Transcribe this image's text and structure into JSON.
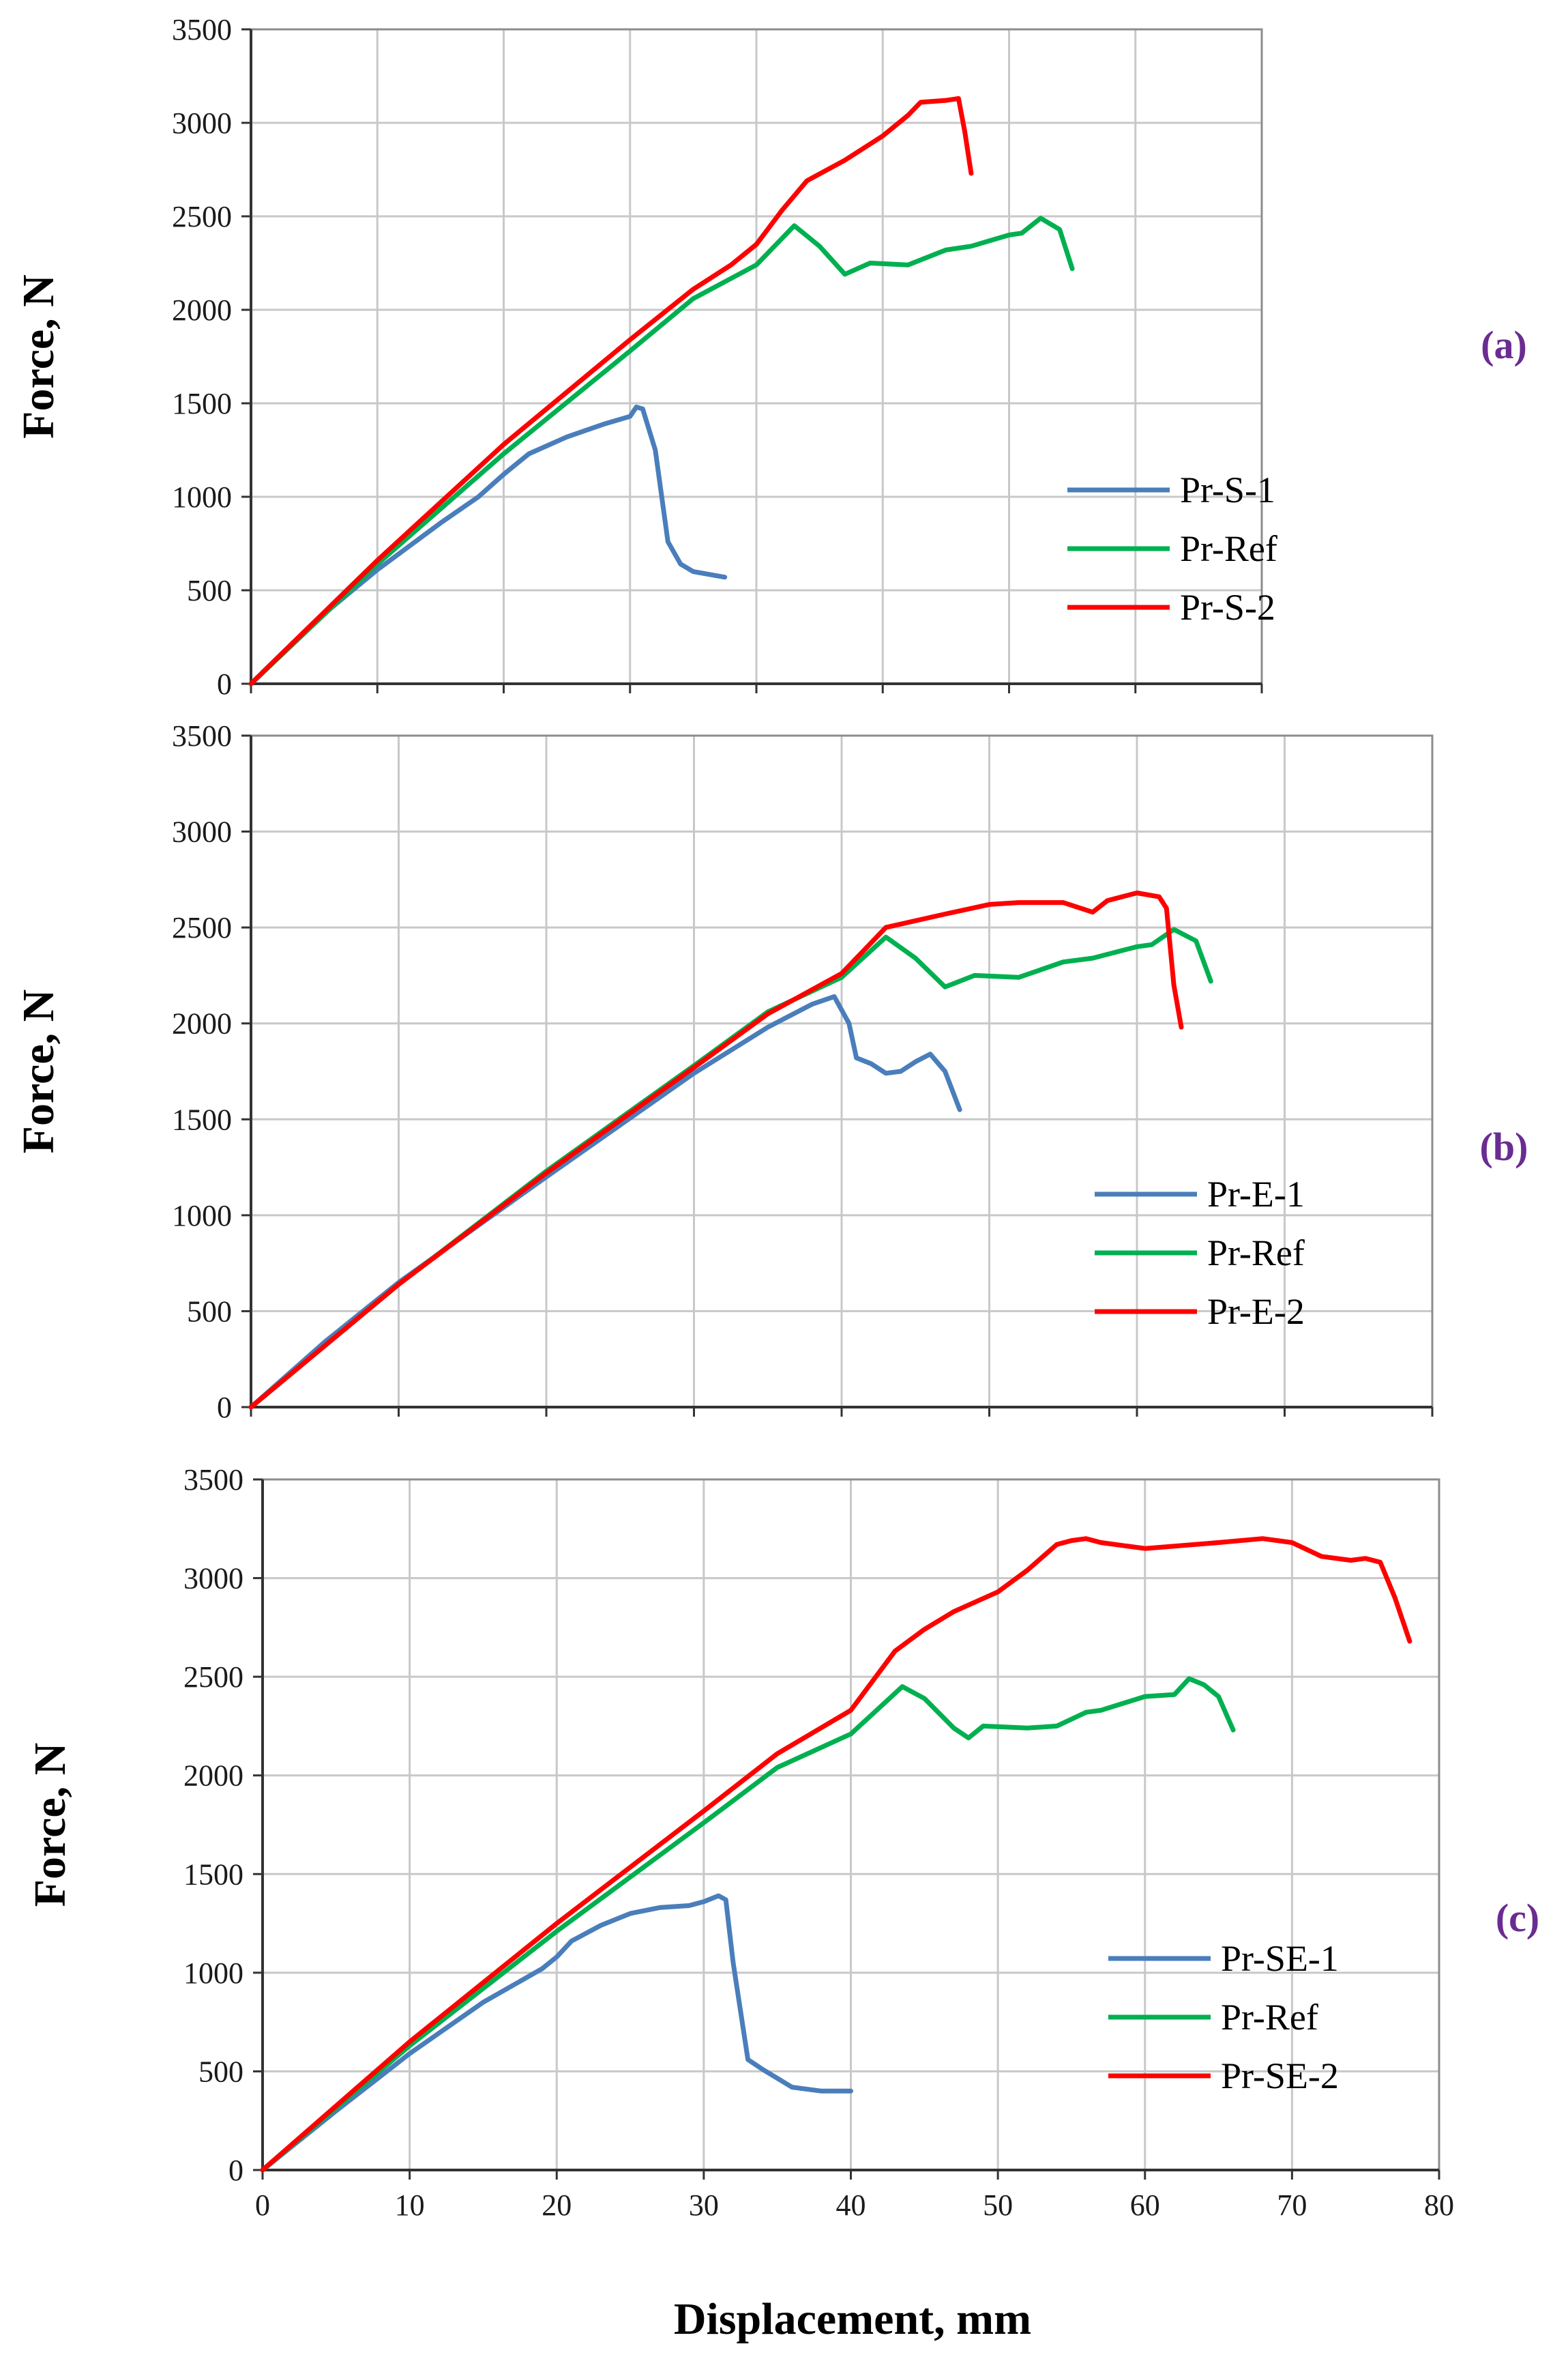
{
  "figure": {
    "xlabel": "Displacement, mm",
    "x_ticks": [
      "0",
      "10",
      "20",
      "30",
      "40",
      "50",
      "60",
      "70",
      "80"
    ],
    "y_ticks": [
      "0",
      "500",
      "1000",
      "1500",
      "2000",
      "2500",
      "3000",
      "3500"
    ]
  },
  "colors": {
    "blue": "#4a7ebb",
    "green": "#00b050",
    "red": "#ff0000"
  },
  "chart_data": [
    {
      "type": "line",
      "panel": "(a)",
      "ylabel": "Force, N",
      "xlim": [
        0,
        80
      ],
      "ylim": [
        0,
        3500
      ],
      "grid": true,
      "legend_position": "lower-right",
      "series": [
        {
          "name": "Pr-S-1",
          "color": "blue",
          "x": [
            0,
            5,
            10,
            15,
            18,
            20,
            22,
            25,
            28,
            30,
            30.5,
            31,
            32,
            33,
            34,
            35,
            37.5
          ],
          "y": [
            0,
            330,
            610,
            860,
            1000,
            1120,
            1230,
            1320,
            1390,
            1430,
            1480,
            1470,
            1250,
            760,
            640,
            600,
            570
          ]
        },
        {
          "name": "Pr-Ref",
          "color": "green",
          "x": [
            0,
            10,
            20,
            30,
            35,
            40,
            43,
            45,
            47,
            49,
            52,
            55,
            57,
            60,
            61,
            62.5,
            64,
            65
          ],
          "y": [
            0,
            640,
            1230,
            1780,
            2060,
            2240,
            2450,
            2340,
            2190,
            2250,
            2240,
            2320,
            2340,
            2400,
            2410,
            2490,
            2430,
            2220
          ]
        },
        {
          "name": "Pr-S-2",
          "color": "red",
          "x": [
            0,
            10,
            20,
            30,
            35,
            38,
            40,
            42,
            44,
            47,
            50,
            52,
            53,
            55,
            56,
            56.5,
            57
          ],
          "y": [
            0,
            660,
            1280,
            1840,
            2110,
            2240,
            2350,
            2530,
            2690,
            2800,
            2930,
            3040,
            3110,
            3120,
            3130,
            2950,
            2730
          ]
        }
      ]
    },
    {
      "type": "line",
      "panel": "(b)",
      "ylabel": "Force, N",
      "xlim": [
        0,
        80
      ],
      "ylim": [
        0,
        3500
      ],
      "grid": true,
      "legend_position": "lower-right",
      "series": [
        {
          "name": "Pr-E-1",
          "color": "blue",
          "x": [
            0,
            5,
            10,
            20,
            30,
            35,
            38,
            39.5,
            40.5,
            41,
            42,
            43,
            44,
            45,
            46,
            47,
            48
          ],
          "y": [
            0,
            340,
            650,
            1200,
            1740,
            1980,
            2100,
            2140,
            2000,
            1820,
            1790,
            1740,
            1750,
            1800,
            1840,
            1750,
            1550
          ]
        },
        {
          "name": "Pr-Ref",
          "color": "green",
          "x": [
            0,
            10,
            20,
            30,
            35,
            40,
            43,
            45,
            47,
            49,
            52,
            55,
            57,
            60,
            61,
            62.5,
            64,
            65
          ],
          "y": [
            0,
            640,
            1230,
            1780,
            2060,
            2240,
            2450,
            2340,
            2190,
            2250,
            2240,
            2320,
            2340,
            2400,
            2410,
            2490,
            2430,
            2220
          ]
        },
        {
          "name": "Pr-E-2",
          "color": "red",
          "x": [
            0,
            10,
            20,
            30,
            35,
            40,
            42,
            43,
            47,
            50,
            52,
            55,
            57,
            58,
            60,
            61.5,
            62,
            62.5,
            63
          ],
          "y": [
            0,
            640,
            1220,
            1770,
            2050,
            2260,
            2420,
            2500,
            2570,
            2620,
            2630,
            2630,
            2580,
            2640,
            2680,
            2660,
            2600,
            2200,
            1980
          ]
        }
      ]
    },
    {
      "type": "line",
      "panel": "(c)",
      "ylabel": "Force, N",
      "xlabel": "Displacement, mm",
      "xlim": [
        0,
        80
      ],
      "ylim": [
        0,
        3500
      ],
      "grid": true,
      "legend_position": "lower-right",
      "series": [
        {
          "name": "Pr-SE-1",
          "color": "blue",
          "x": [
            0,
            5,
            10,
            15,
            19,
            20,
            21,
            23,
            25,
            27,
            29,
            30,
            31,
            31.5,
            32,
            33,
            34,
            36,
            38,
            40
          ],
          "y": [
            0,
            300,
            590,
            850,
            1020,
            1080,
            1160,
            1240,
            1300,
            1330,
            1340,
            1360,
            1390,
            1370,
            1050,
            560,
            510,
            420,
            400,
            400
          ]
        },
        {
          "name": "Pr-Ref",
          "color": "green",
          "x": [
            0,
            10,
            20,
            30,
            35,
            40,
            43.5,
            45,
            47,
            48,
            49,
            52,
            54,
            56,
            57,
            60,
            62,
            63,
            64,
            65,
            66
          ],
          "y": [
            0,
            630,
            1210,
            1760,
            2040,
            2210,
            2450,
            2390,
            2240,
            2190,
            2250,
            2240,
            2250,
            2320,
            2330,
            2400,
            2410,
            2490,
            2460,
            2400,
            2230
          ]
        },
        {
          "name": "Pr-SE-2",
          "color": "red",
          "x": [
            0,
            10,
            20,
            30,
            35,
            40,
            42,
            43,
            45,
            47,
            50,
            52,
            54,
            55,
            56,
            57,
            60,
            65,
            68,
            70,
            72,
            74,
            75,
            76,
            77,
            78
          ],
          "y": [
            0,
            650,
            1250,
            1820,
            2110,
            2330,
            2530,
            2630,
            2740,
            2830,
            2930,
            3040,
            3170,
            3190,
            3200,
            3180,
            3150,
            3180,
            3200,
            3180,
            3110,
            3090,
            3100,
            3080,
            2900,
            2680
          ]
        }
      ]
    }
  ]
}
